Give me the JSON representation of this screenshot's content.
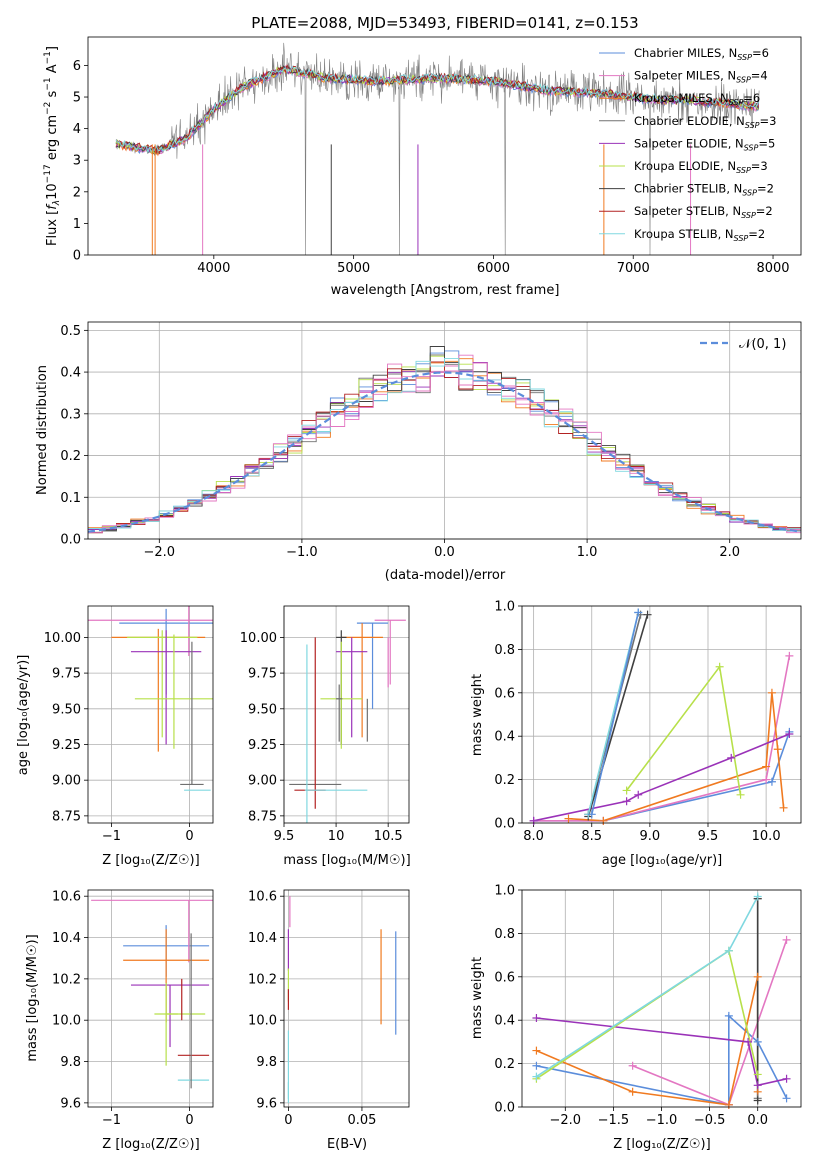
{
  "chart_data": [
    {
      "type": "line",
      "title": "PLATE=2088, MJD=53493, FIBERID=0141, z=0.153",
      "xlabel": "wavelength [Angstrom, rest frame]",
      "ylabel": "Flux [fλ10⁻¹⁷ erg cm⁻² s⁻¹ A⁻¹]",
      "xlim": [
        3100,
        8200
      ],
      "ylim": [
        0,
        6.9
      ],
      "xticks": [
        4000,
        5000,
        6000,
        7000,
        8000
      ],
      "yticks": [
        0,
        1,
        2,
        3,
        4,
        5,
        6
      ],
      "grid": false,
      "legend": "top-right",
      "legend_labels": [
        "Chabrier MILES, NSSP=6",
        "Salpeter MILES, NSSP=4",
        "Kroupa MILES, NSSP=6",
        "Chabrier ELODIE, NSSP=3",
        "Salpeter ELODIE, NSSP=5",
        "Kroupa ELODIE, NSSP=3",
        "Chabrier STELIB, NSSP=2",
        "Salpeter STELIB, NSSP=2",
        "Kroupa STELIB, NSSP=2"
      ],
      "colors": [
        "#5b8ddb",
        "#e377c2",
        "#f07a20",
        "#707070",
        "#9a32b8",
        "#b7e04a",
        "#404040",
        "#b22222",
        "#80d8e0"
      ],
      "data_color": "#7f7f7f",
      "model_curve_anchors": {
        "x": [
          3300,
          3450,
          3600,
          3800,
          4000,
          4200,
          4500,
          4800,
          5200,
          5600,
          6000,
          6400,
          6800,
          7200,
          7400,
          7900
        ],
        "y": [
          3.5,
          3.4,
          3.3,
          3.7,
          4.6,
          5.3,
          5.9,
          5.6,
          5.5,
          5.6,
          5.5,
          5.2,
          5.1,
          4.9,
          4.9,
          4.7
        ]
      }
    },
    {
      "type": "bar",
      "xlabel": "(data-model)/error",
      "ylabel": "Normed distribution",
      "xlim": [
        -2.5,
        2.5
      ],
      "ylim": [
        0,
        0.52
      ],
      "xticks": [
        -2,
        -1,
        0,
        1,
        2
      ],
      "yticks": [
        0.0,
        0.1,
        0.2,
        0.3,
        0.4,
        0.5
      ],
      "grid": true,
      "legend": "top-right",
      "legend_label": "𝒩(0, 1)",
      "reference_curve": "normal(0,1)",
      "bin_width": 0.1
    },
    {
      "type": "scatter",
      "xlabel": "Z [log₁₀(Z/Z☉)]",
      "ylabel": "age  [log₁₀(age/yr)]",
      "xlim": [
        -1.3,
        0.3
      ],
      "ylim": [
        8.7,
        10.22
      ],
      "xticks": [
        -1,
        0
      ],
      "yticks": [
        8.75,
        9.0,
        9.25,
        9.5,
        9.75,
        10.0
      ],
      "grid": true,
      "points": [
        {
          "x": -0.3,
          "y": 10.1,
          "xerr": 0.6,
          "yerr": [
            0.5,
            0.1
          ],
          "c": 0
        },
        {
          "x": -0.01,
          "y": 10.12,
          "xerr": 1.3,
          "yerr": [
            0.25,
            0.1
          ],
          "c": 1
        },
        {
          "x": -0.4,
          "y": 10.0,
          "xerr": 0.6,
          "yerr": [
            0.8,
            0.06
          ],
          "c": 2
        },
        {
          "x": -0.35,
          "y": 10.0,
          "xerr": 0.45,
          "yerr": [
            0.7,
            0.05
          ],
          "c": 5
        },
        {
          "x": -0.3,
          "y": 9.9,
          "xerr": 0.45,
          "yerr": [
            0.65,
            0.15
          ],
          "c": 4
        },
        {
          "x": -0.2,
          "y": 9.57,
          "xerr": 0.5,
          "yerr": [
            0.35,
            0.45
          ],
          "c": 5
        },
        {
          "x": 0.03,
          "y": 8.97,
          "xerr": 0.15,
          "yerr": [
            0.0,
            1.0
          ],
          "c": 3
        },
        {
          "x": 0.1,
          "y": 8.93,
          "xerr": 0.17,
          "yerr": [
            0.0,
            0.0
          ],
          "c": 8
        }
      ]
    },
    {
      "type": "scatter",
      "xlabel": "mass [log₁₀(M/M☉)]",
      "xlim": [
        9.5,
        10.7
      ],
      "ylim": [
        8.7,
        10.22
      ],
      "xticks": [
        9.5,
        10.0,
        10.5
      ],
      "yticks": [
        8.75,
        9.0,
        9.25,
        9.5,
        9.75,
        10.0
      ],
      "grid": true,
      "points": [
        {
          "x": 10.35,
          "y": 10.1,
          "xerr": 0.15,
          "yerr": [
            0.6,
            0.0
          ],
          "c": 0
        },
        {
          "x": 10.52,
          "y": 10.12,
          "xerr": 0.15,
          "yerr": [
            0.45,
            0.0
          ],
          "c": 1
        },
        {
          "x": 10.25,
          "y": 10.0,
          "xerr": 0.2,
          "yerr": [
            0.7,
            0.1
          ],
          "c": 2
        },
        {
          "x": 10.05,
          "y": 10.0,
          "xerr": 0.05,
          "yerr": [
            0.75,
            0.05
          ],
          "c": 6
        },
        {
          "x": 10.15,
          "y": 9.9,
          "xerr": 0.15,
          "yerr": [
            0.6,
            0.1
          ],
          "c": 4
        },
        {
          "x": 10.05,
          "y": 9.57,
          "xerr": 0.2,
          "yerr": [
            0.35,
            0.4
          ],
          "c": 5
        },
        {
          "x": 10.03,
          "y": 9.57,
          "xerr": 0.03,
          "yerr": [
            0.3,
            0.1
          ],
          "c": 3
        },
        {
          "x": 10.3,
          "y": 9.57,
          "xerr": 0.0,
          "yerr": [
            0.3,
            0.0
          ],
          "c": 3
        },
        {
          "x": 9.85,
          "y": 9.57,
          "xerr": 0.0,
          "yerr": [
            0.0,
            0.0
          ],
          "c": 5
        },
        {
          "x": 9.8,
          "y": 8.97,
          "xerr": 0.25,
          "yerr": [
            0.0,
            0.0
          ],
          "c": 3
        },
        {
          "x": 9.75,
          "y": 8.93,
          "xerr": 0.15,
          "yerr": [
            0.0,
            0.0
          ],
          "c": 7
        },
        {
          "x": 9.8,
          "y": 9.0,
          "xerr": 0.0,
          "yerr": [
            0.2,
            1.0
          ],
          "c": 7
        },
        {
          "x": 10.0,
          "y": 8.93,
          "xerr": 0.3,
          "yerr": [
            0.0,
            0.0
          ],
          "c": 8
        },
        {
          "x": 9.72,
          "y": 9.5,
          "xerr": 0.0,
          "yerr": [
            0.8,
            0.45
          ],
          "c": 8
        },
        {
          "x": 10.5,
          "y": 10.0,
          "xerr": 0.0,
          "yerr": [
            0.35,
            0.0
          ],
          "c": 1
        }
      ]
    },
    {
      "type": "line",
      "xlabel": "age  [log₁₀(age/yr)]",
      "ylabel": "mass weight",
      "xlim": [
        7.9,
        10.3
      ],
      "ylim": [
        0,
        1.0
      ],
      "xticks": [
        8.0,
        8.5,
        9.0,
        9.5,
        10.0
      ],
      "yticks": [
        0.0,
        0.2,
        0.4,
        0.6,
        0.8,
        1.0
      ],
      "grid": true,
      "series": [
        {
          "c": 0,
          "x": [
            8.0,
            8.6,
            10.05,
            10.2
          ],
          "y": [
            0.01,
            0.01,
            0.19,
            0.42
          ]
        },
        {
          "c": 1,
          "x": [
            8.0,
            8.6,
            10.0,
            10.2
          ],
          "y": [
            0.01,
            0.01,
            0.2,
            0.77
          ]
        },
        {
          "c": 2,
          "x": [
            8.3,
            8.6,
            10.0,
            10.05,
            10.1,
            10.15
          ],
          "y": [
            0.02,
            0.01,
            0.26,
            0.6,
            0.34,
            0.07
          ]
        },
        {
          "c": 3,
          "x": [
            8.47,
            8.92
          ],
          "y": [
            0.04,
            0.96
          ]
        },
        {
          "c": 4,
          "x": [
            8.0,
            8.8,
            8.9,
            9.7,
            10.2
          ],
          "y": [
            0.01,
            0.1,
            0.13,
            0.3,
            0.41
          ]
        },
        {
          "c": 5,
          "x": [
            8.8,
            9.6,
            9.78
          ],
          "y": [
            0.15,
            0.72,
            0.13
          ]
        },
        {
          "c": 6,
          "x": [
            8.47,
            8.98
          ],
          "y": [
            0.03,
            0.96
          ]
        },
        {
          "c": 8,
          "x": [
            8.47,
            8.9
          ],
          "y": [
            0.04,
            0.97
          ]
        },
        {
          "c": 0,
          "x": [
            8.5,
            8.9
          ],
          "y": [
            0.04,
            0.97
          ]
        }
      ]
    },
    {
      "type": "scatter",
      "xlabel": "Z [log₁₀(Z/Z☉)]",
      "ylabel": "mass [log₁₀(M/M☉)]",
      "xlim": [
        -1.3,
        0.3
      ],
      "ylim": [
        9.58,
        10.63
      ],
      "xticks": [
        -1,
        0
      ],
      "yticks": [
        9.6,
        9.8,
        10.0,
        10.2,
        10.4,
        10.6
      ],
      "grid": true,
      "points": [
        {
          "x": -0.3,
          "y": 10.36,
          "xerr": 0.55,
          "yerr": [
            0.15,
            0.1
          ],
          "c": 0
        },
        {
          "x": -0.01,
          "y": 10.58,
          "xerr": 1.25,
          "yerr": [
            0.3,
            0.0
          ],
          "c": 1
        },
        {
          "x": -0.3,
          "y": 10.29,
          "xerr": 0.55,
          "yerr": [
            0.3,
            0.15
          ],
          "c": 2
        },
        {
          "x": -0.25,
          "y": 10.17,
          "xerr": 0.5,
          "yerr": [
            0.3,
            0.0
          ],
          "c": 4
        },
        {
          "x": -0.3,
          "y": 10.03,
          "xerr": 0.15,
          "yerr": [
            0.25,
            0.15
          ],
          "c": 5
        },
        {
          "x": -0.05,
          "y": 10.03,
          "xerr": 0.25,
          "yerr": [
            0.0,
            0.0
          ],
          "c": 5
        },
        {
          "x": 0.05,
          "y": 9.83,
          "xerr": 0.2,
          "yerr": [
            0.0,
            0.0
          ],
          "c": 7
        },
        {
          "x": 0.05,
          "y": 9.71,
          "xerr": 0.2,
          "yerr": [
            0.0,
            0.0
          ],
          "c": 8
        },
        {
          "x": 0.02,
          "y": 9.92,
          "xerr": 0.0,
          "yerr": [
            0.25,
            0.5
          ],
          "c": 3
        },
        {
          "x": -0.1,
          "y": 10.1,
          "xerr": 0.0,
          "yerr": [
            0.1,
            0.1
          ],
          "c": 7
        }
      ]
    },
    {
      "type": "scatter",
      "xlabel": "E(B-V)",
      "xlim": [
        -0.003,
        0.082
      ],
      "ylim": [
        9.58,
        10.63
      ],
      "xticks": [
        0.0,
        0.05
      ],
      "yticks": [
        9.6,
        9.8,
        10.0,
        10.2,
        10.4,
        10.6
      ],
      "grid": true,
      "points": [
        {
          "x": 0.073,
          "y": 10.18,
          "xerr": 0.0,
          "yerr": [
            0.25,
            0.25
          ],
          "c": 0
        },
        {
          "x": 0.001,
          "y": 10.5,
          "xerr": 0.0,
          "yerr": [
            0.05,
            0.1
          ],
          "c": 1
        },
        {
          "x": 0.063,
          "y": 10.21,
          "xerr": 0.0,
          "yerr": [
            0.23,
            0.23
          ],
          "c": 2
        },
        {
          "x": 0.0,
          "y": 10.34,
          "xerr": 0.0,
          "yerr": [
            0.1,
            0.1
          ],
          "c": 4
        },
        {
          "x": 0.0,
          "y": 10.17,
          "xerr": 0.0,
          "yerr": [
            0.08,
            0.08
          ],
          "c": 5
        },
        {
          "x": 0.0,
          "y": 10.1,
          "xerr": 0.0,
          "yerr": [
            0.05,
            0.05
          ],
          "c": 7
        },
        {
          "x": 0.0,
          "y": 9.95,
          "xerr": 0.0,
          "yerr": [
            0.33,
            0.0
          ],
          "c": 8
        },
        {
          "x": 0.0,
          "y": 9.65,
          "xerr": 0.0,
          "yerr": [
            0.05,
            0.05
          ],
          "c": 8
        }
      ]
    },
    {
      "type": "line",
      "xlabel": "Z [log₁₀(Z/Z☉)]",
      "ylabel": "mass weight",
      "xlim": [
        -2.45,
        0.45
      ],
      "ylim": [
        0,
        1.0
      ],
      "xticks": [
        -2.0,
        -1.5,
        -1.0,
        -0.5,
        0.0
      ],
      "yticks": [
        0.0,
        0.2,
        0.4,
        0.6,
        0.8,
        1.0
      ],
      "grid": true,
      "series": [
        {
          "c": 0,
          "x": [
            -2.3,
            -0.3,
            -0.3,
            0.0,
            0.3
          ],
          "y": [
            0.19,
            0.01,
            0.42,
            0.3,
            0.04
          ]
        },
        {
          "c": 1,
          "x": [
            -1.3,
            -0.3,
            0.3
          ],
          "y": [
            0.19,
            0.01,
            0.77
          ]
        },
        {
          "c": 2,
          "x": [
            -2.3,
            -1.3,
            -0.3,
            0.0,
            0.0
          ],
          "y": [
            0.26,
            0.07,
            0.01,
            0.6,
            0.07
          ]
        },
        {
          "c": 3,
          "x": [
            0.0,
            0.0
          ],
          "y": [
            0.04,
            0.96
          ]
        },
        {
          "c": 4,
          "x": [
            -2.3,
            -0.1,
            0.0,
            0.3
          ],
          "y": [
            0.41,
            0.3,
            0.1,
            0.13
          ]
        },
        {
          "c": 5,
          "x": [
            -2.3,
            -0.3,
            0.0
          ],
          "y": [
            0.13,
            0.72,
            0.15
          ]
        },
        {
          "c": 6,
          "x": [
            0.0,
            0.0
          ],
          "y": [
            0.03,
            0.96
          ]
        },
        {
          "c": 8,
          "x": [
            -2.3,
            -0.3,
            0.0
          ],
          "y": [
            0.14,
            0.72,
            0.97
          ]
        }
      ]
    }
  ]
}
